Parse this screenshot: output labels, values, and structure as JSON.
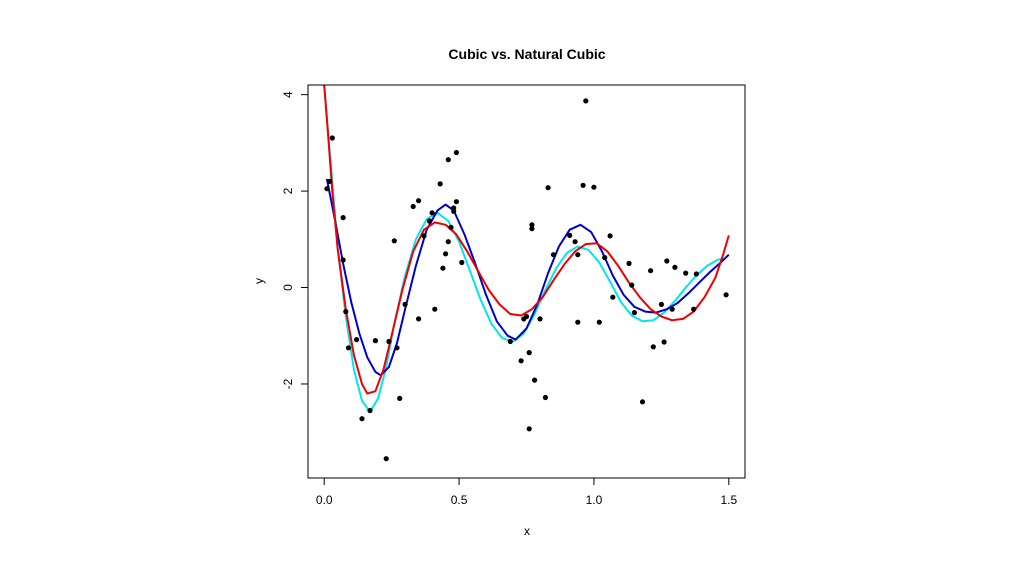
{
  "chart_data": {
    "type": "scatter",
    "title": "Cubic vs. Natural Cubic",
    "xlabel": "x",
    "ylabel": "y",
    "xlim": [
      -0.06,
      1.56
    ],
    "ylim": [
      -3.95,
      4.2
    ],
    "x_ticks": [
      0.0,
      0.5,
      1.0,
      1.5
    ],
    "x_tick_labels": [
      "0.0",
      "0.5",
      "1.0",
      "1.5"
    ],
    "y_ticks": [
      -2,
      0,
      2,
      4
    ],
    "y_tick_labels": [
      "-2",
      "0",
      "2",
      "4"
    ],
    "grid": false,
    "legend": "none",
    "points": [
      {
        "x": 0.01,
        "y": 2.05
      },
      {
        "x": 0.02,
        "y": 2.2
      },
      {
        "x": 0.03,
        "y": 3.1
      },
      {
        "x": 0.07,
        "y": 1.45
      },
      {
        "x": 0.07,
        "y": 0.57
      },
      {
        "x": 0.08,
        "y": -0.5
      },
      {
        "x": 0.09,
        "y": -1.25
      },
      {
        "x": 0.12,
        "y": -1.08
      },
      {
        "x": 0.14,
        "y": -2.72
      },
      {
        "x": 0.17,
        "y": -2.55
      },
      {
        "x": 0.19,
        "y": -1.1
      },
      {
        "x": 0.23,
        "y": -3.55
      },
      {
        "x": 0.24,
        "y": -1.12
      },
      {
        "x": 0.26,
        "y": 0.97
      },
      {
        "x": 0.27,
        "y": -1.25
      },
      {
        "x": 0.28,
        "y": -2.3
      },
      {
        "x": 0.3,
        "y": -0.35
      },
      {
        "x": 0.33,
        "y": 1.68
      },
      {
        "x": 0.35,
        "y": 1.8
      },
      {
        "x": 0.35,
        "y": -0.65
      },
      {
        "x": 0.37,
        "y": 1.07
      },
      {
        "x": 0.39,
        "y": 1.38
      },
      {
        "x": 0.4,
        "y": 1.55
      },
      {
        "x": 0.41,
        "y": -0.45
      },
      {
        "x": 0.43,
        "y": 2.15
      },
      {
        "x": 0.44,
        "y": 0.4
      },
      {
        "x": 0.45,
        "y": 0.7
      },
      {
        "x": 0.46,
        "y": 2.65
      },
      {
        "x": 0.46,
        "y": 0.95
      },
      {
        "x": 0.47,
        "y": 1.25
      },
      {
        "x": 0.48,
        "y": 1.65
      },
      {
        "x": 0.48,
        "y": 1.58
      },
      {
        "x": 0.49,
        "y": 2.8
      },
      {
        "x": 0.49,
        "y": 1.78
      },
      {
        "x": 0.51,
        "y": 0.52
      },
      {
        "x": 0.69,
        "y": -1.12
      },
      {
        "x": 0.73,
        "y": -1.52
      },
      {
        "x": 0.74,
        "y": -0.65
      },
      {
        "x": 0.75,
        "y": -0.6
      },
      {
        "x": 0.76,
        "y": -1.35
      },
      {
        "x": 0.76,
        "y": -2.93
      },
      {
        "x": 0.77,
        "y": 1.22
      },
      {
        "x": 0.77,
        "y": 1.3
      },
      {
        "x": 0.78,
        "y": -1.92
      },
      {
        "x": 0.8,
        "y": -0.65
      },
      {
        "x": 0.82,
        "y": -2.28
      },
      {
        "x": 0.83,
        "y": 2.07
      },
      {
        "x": 0.85,
        "y": 0.68
      },
      {
        "x": 0.91,
        "y": 1.08
      },
      {
        "x": 0.93,
        "y": 0.95
      },
      {
        "x": 0.94,
        "y": 0.68
      },
      {
        "x": 0.94,
        "y": -0.72
      },
      {
        "x": 0.96,
        "y": 2.12
      },
      {
        "x": 0.97,
        "y": 3.87
      },
      {
        "x": 1.0,
        "y": 2.08
      },
      {
        "x": 1.02,
        "y": -0.72
      },
      {
        "x": 1.04,
        "y": 0.62
      },
      {
        "x": 1.06,
        "y": 1.07
      },
      {
        "x": 1.07,
        "y": -0.2
      },
      {
        "x": 1.13,
        "y": 0.5
      },
      {
        "x": 1.14,
        "y": 0.05
      },
      {
        "x": 1.15,
        "y": -0.52
      },
      {
        "x": 1.18,
        "y": -2.37
      },
      {
        "x": 1.21,
        "y": 0.35
      },
      {
        "x": 1.22,
        "y": -1.23
      },
      {
        "x": 1.25,
        "y": -0.35
      },
      {
        "x": 1.26,
        "y": -1.13
      },
      {
        "x": 1.27,
        "y": 0.55
      },
      {
        "x": 1.29,
        "y": -0.45
      },
      {
        "x": 1.3,
        "y": 0.42
      },
      {
        "x": 1.34,
        "y": 0.3
      },
      {
        "x": 1.37,
        "y": -0.45
      },
      {
        "x": 1.38,
        "y": 0.28
      },
      {
        "x": 1.49,
        "y": -0.15
      }
    ],
    "series": [
      {
        "color": "#00e5ee",
        "points": [
          [
            0.0,
            4.2
          ],
          [
            0.01,
            3.5
          ],
          [
            0.03,
            2.2
          ],
          [
            0.05,
            0.8
          ],
          [
            0.08,
            -0.6
          ],
          [
            0.11,
            -1.7
          ],
          [
            0.14,
            -2.35
          ],
          [
            0.17,
            -2.58
          ],
          [
            0.2,
            -2.3
          ],
          [
            0.23,
            -1.65
          ],
          [
            0.26,
            -0.75
          ],
          [
            0.3,
            0.25
          ],
          [
            0.34,
            1.0
          ],
          [
            0.38,
            1.42
          ],
          [
            0.42,
            1.55
          ],
          [
            0.46,
            1.38
          ],
          [
            0.5,
            0.95
          ],
          [
            0.54,
            0.35
          ],
          [
            0.58,
            -0.25
          ],
          [
            0.62,
            -0.75
          ],
          [
            0.66,
            -1.05
          ],
          [
            0.7,
            -1.12
          ],
          [
            0.74,
            -0.95
          ],
          [
            0.78,
            -0.55
          ],
          [
            0.82,
            -0.05
          ],
          [
            0.86,
            0.4
          ],
          [
            0.9,
            0.72
          ],
          [
            0.94,
            0.85
          ],
          [
            0.98,
            0.78
          ],
          [
            1.02,
            0.52
          ],
          [
            1.06,
            0.12
          ],
          [
            1.1,
            -0.3
          ],
          [
            1.14,
            -0.58
          ],
          [
            1.18,
            -0.7
          ],
          [
            1.22,
            -0.68
          ],
          [
            1.26,
            -0.52
          ],
          [
            1.3,
            -0.28
          ],
          [
            1.34,
            0.0
          ],
          [
            1.38,
            0.25
          ],
          [
            1.42,
            0.45
          ],
          [
            1.46,
            0.58
          ],
          [
            1.49,
            0.6
          ]
        ]
      },
      {
        "color": "#0000cd",
        "points": [
          [
            0.01,
            2.25
          ],
          [
            0.04,
            1.4
          ],
          [
            0.07,
            0.5
          ],
          [
            0.1,
            -0.3
          ],
          [
            0.13,
            -0.95
          ],
          [
            0.16,
            -1.45
          ],
          [
            0.19,
            -1.75
          ],
          [
            0.21,
            -1.82
          ],
          [
            0.24,
            -1.65
          ],
          [
            0.27,
            -1.15
          ],
          [
            0.3,
            -0.45
          ],
          [
            0.34,
            0.45
          ],
          [
            0.38,
            1.2
          ],
          [
            0.42,
            1.6
          ],
          [
            0.45,
            1.72
          ],
          [
            0.48,
            1.6
          ],
          [
            0.52,
            1.1
          ],
          [
            0.56,
            0.5
          ],
          [
            0.6,
            -0.15
          ],
          [
            0.64,
            -0.7
          ],
          [
            0.68,
            -1.0
          ],
          [
            0.71,
            -1.08
          ],
          [
            0.75,
            -0.85
          ],
          [
            0.79,
            -0.35
          ],
          [
            0.83,
            0.3
          ],
          [
            0.87,
            0.85
          ],
          [
            0.91,
            1.2
          ],
          [
            0.95,
            1.3
          ],
          [
            0.99,
            1.15
          ],
          [
            1.03,
            0.75
          ],
          [
            1.07,
            0.25
          ],
          [
            1.11,
            -0.15
          ],
          [
            1.15,
            -0.4
          ],
          [
            1.19,
            -0.5
          ],
          [
            1.23,
            -0.52
          ],
          [
            1.27,
            -0.45
          ],
          [
            1.31,
            -0.32
          ],
          [
            1.35,
            -0.12
          ],
          [
            1.39,
            0.1
          ],
          [
            1.43,
            0.32
          ],
          [
            1.47,
            0.52
          ],
          [
            1.5,
            0.68
          ]
        ]
      },
      {
        "color": "#ee0000",
        "points": [
          [
            0.0,
            4.2
          ],
          [
            0.01,
            3.5
          ],
          [
            0.03,
            2.0
          ],
          [
            0.05,
            0.8
          ],
          [
            0.08,
            -0.45
          ],
          [
            0.11,
            -1.4
          ],
          [
            0.14,
            -2.0
          ],
          [
            0.16,
            -2.2
          ],
          [
            0.19,
            -2.15
          ],
          [
            0.22,
            -1.7
          ],
          [
            0.25,
            -1.0
          ],
          [
            0.29,
            -0.05
          ],
          [
            0.33,
            0.75
          ],
          [
            0.37,
            1.2
          ],
          [
            0.41,
            1.35
          ],
          [
            0.45,
            1.3
          ],
          [
            0.49,
            1.1
          ],
          [
            0.53,
            0.75
          ],
          [
            0.57,
            0.35
          ],
          [
            0.61,
            -0.05
          ],
          [
            0.65,
            -0.35
          ],
          [
            0.69,
            -0.55
          ],
          [
            0.73,
            -0.58
          ],
          [
            0.77,
            -0.45
          ],
          [
            0.81,
            -0.2
          ],
          [
            0.85,
            0.15
          ],
          [
            0.89,
            0.48
          ],
          [
            0.93,
            0.75
          ],
          [
            0.97,
            0.9
          ],
          [
            1.01,
            0.92
          ],
          [
            1.05,
            0.75
          ],
          [
            1.09,
            0.45
          ],
          [
            1.13,
            0.1
          ],
          [
            1.17,
            -0.2
          ],
          [
            1.21,
            -0.45
          ],
          [
            1.25,
            -0.6
          ],
          [
            1.29,
            -0.68
          ],
          [
            1.33,
            -0.65
          ],
          [
            1.37,
            -0.5
          ],
          [
            1.41,
            -0.2
          ],
          [
            1.45,
            0.2
          ],
          [
            1.48,
            0.7
          ],
          [
            1.5,
            1.08
          ]
        ]
      }
    ]
  }
}
